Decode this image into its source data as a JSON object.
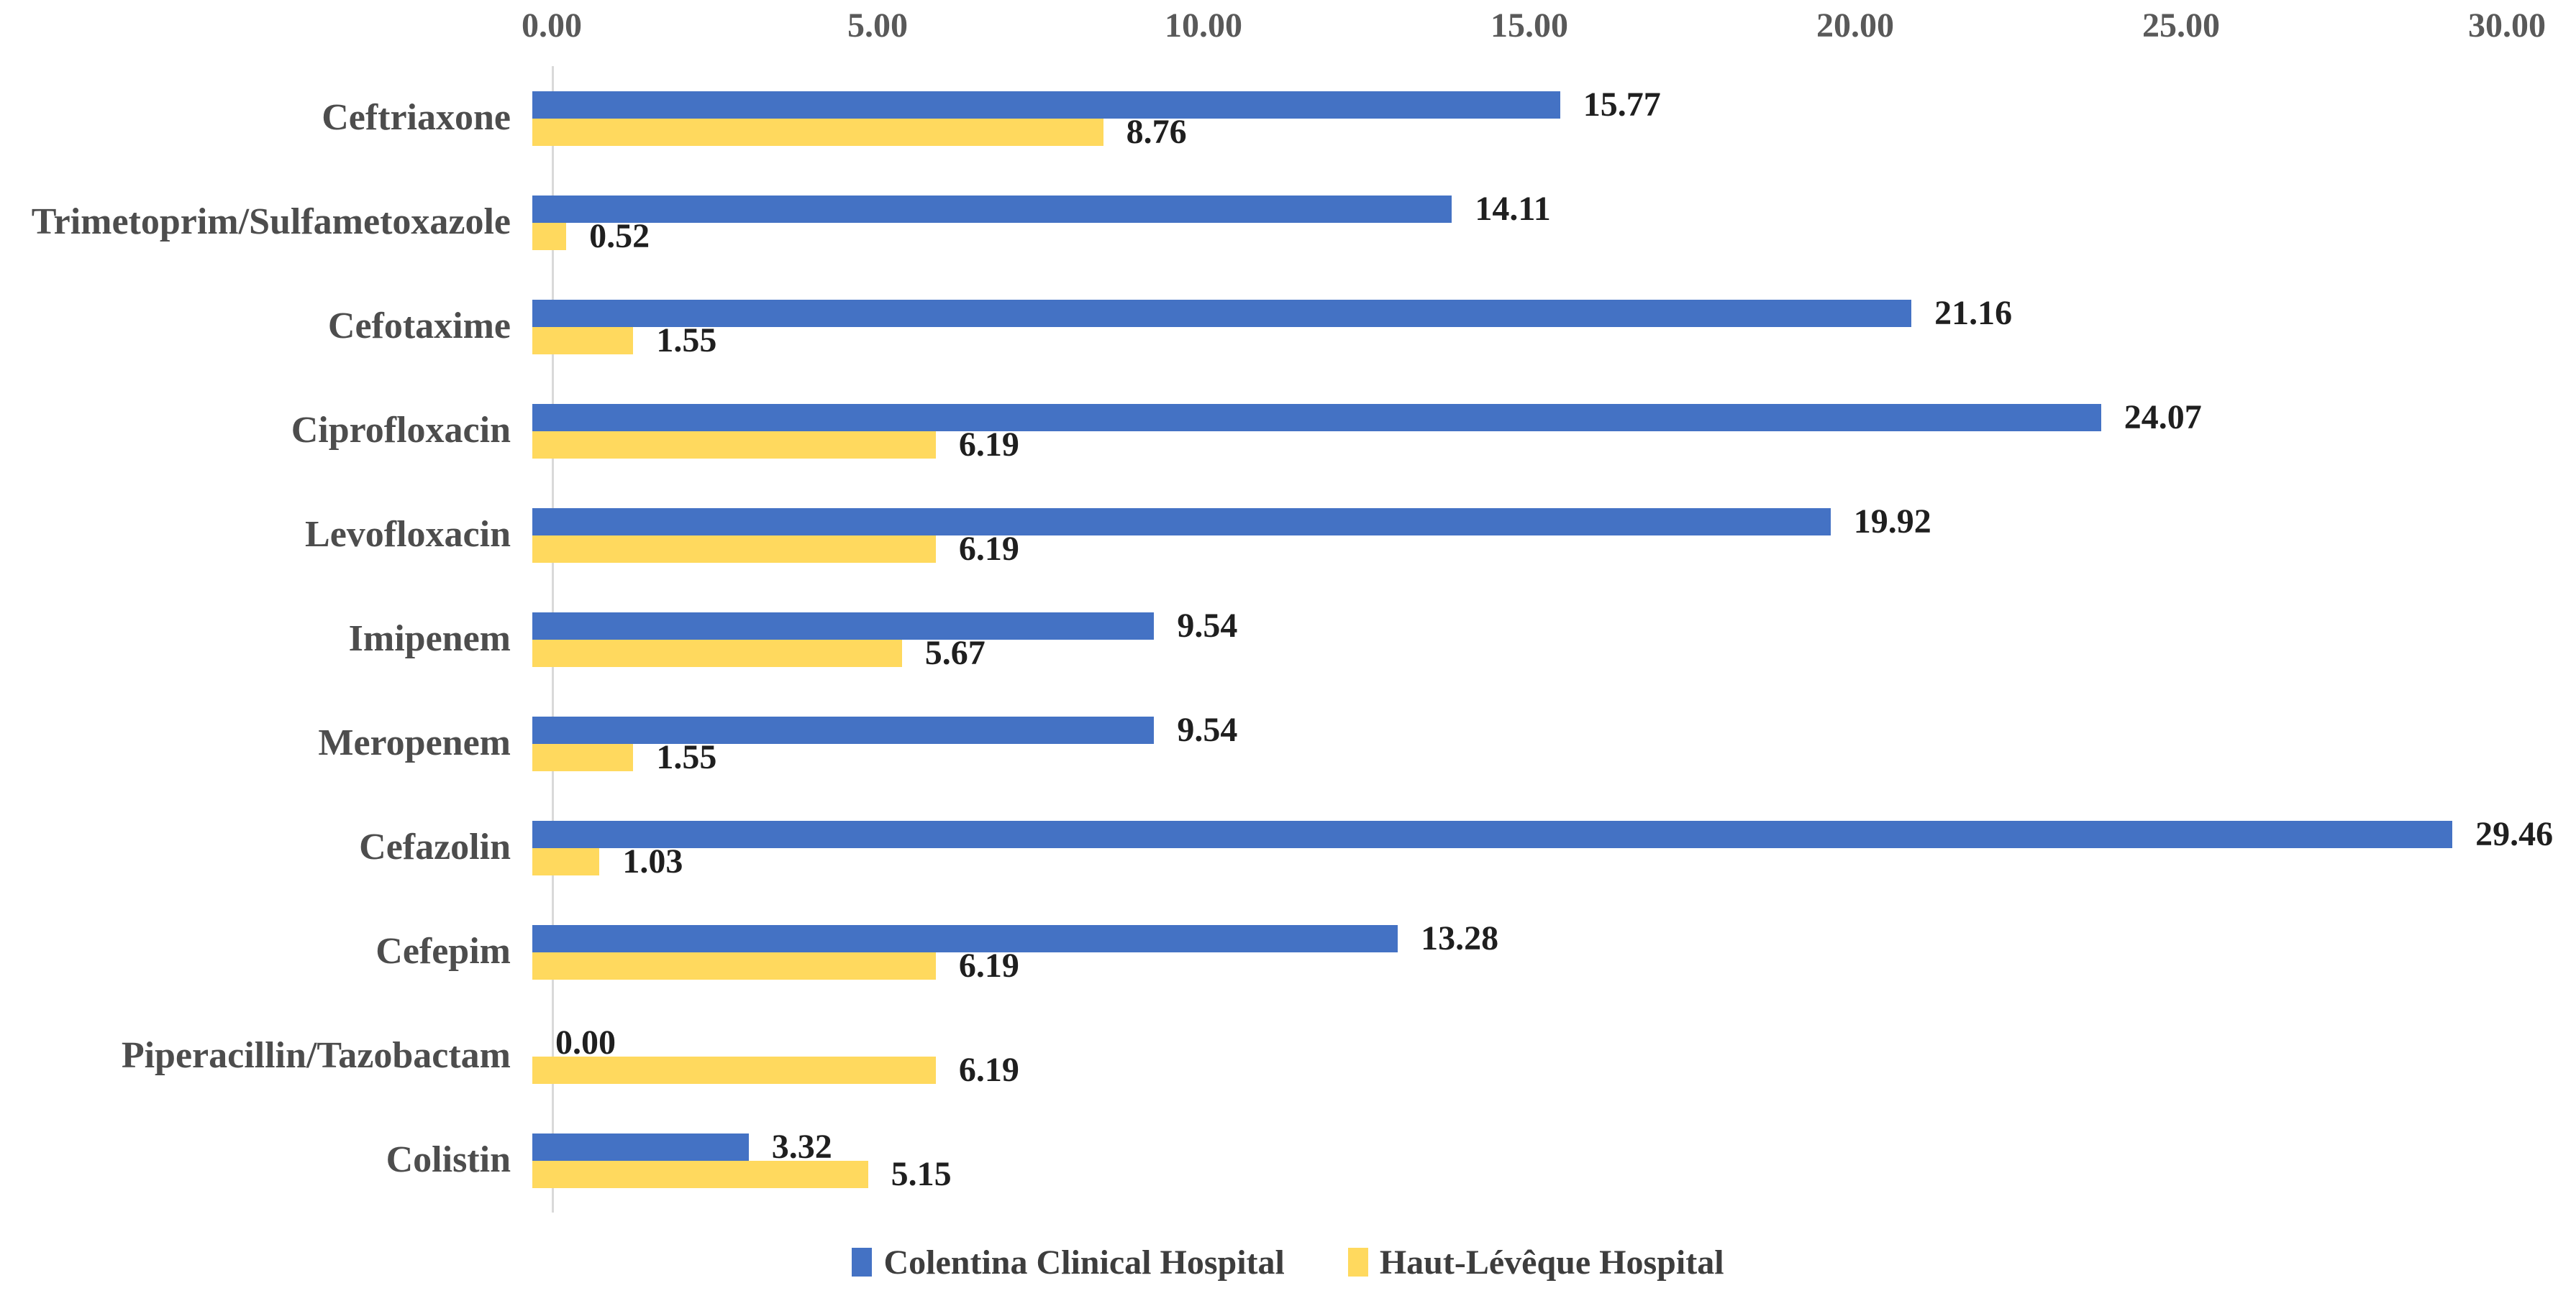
{
  "chart_data": {
    "type": "bar",
    "orientation": "horizontal",
    "title": "",
    "categories": [
      "Ceftriaxone",
      "Trimetoprim/Sulfametoxazole",
      "Cefotaxime",
      "Ciprofloxacin",
      "Levofloxacin",
      "Imipenem",
      "Meropenem",
      "Cefazolin",
      "Cefepim",
      "Piperacillin/Tazobactam",
      "Colistin"
    ],
    "series": [
      {
        "name": "Colentina Clinical Hospital",
        "color": "#4472C4",
        "values": [
          15.77,
          14.11,
          21.16,
          24.07,
          19.92,
          9.54,
          9.54,
          29.46,
          13.28,
          0.0,
          3.32
        ]
      },
      {
        "name": "Haut-Lévêque Hospital",
        "color": "#FFD95E",
        "values": [
          8.76,
          0.52,
          1.55,
          6.19,
          6.19,
          5.67,
          1.55,
          1.03,
          6.19,
          6.19,
          5.15
        ]
      }
    ],
    "xlim": [
      0,
      30
    ],
    "x_ticks": [
      "0.00",
      "5.00",
      "10.00",
      "15.00",
      "20.00",
      "25.00",
      "30.00"
    ],
    "value_label_decimals": 2,
    "grid": false,
    "legend_position": "bottom",
    "axis_side": "top",
    "colors": {
      "axis_line": "#D9D9D9",
      "tick_label": "#595959",
      "category_label": "#4D4D4D",
      "value_label": "#1F1F1F",
      "legend_text": "#3D3D3D",
      "background": "#FFFFFF"
    }
  }
}
